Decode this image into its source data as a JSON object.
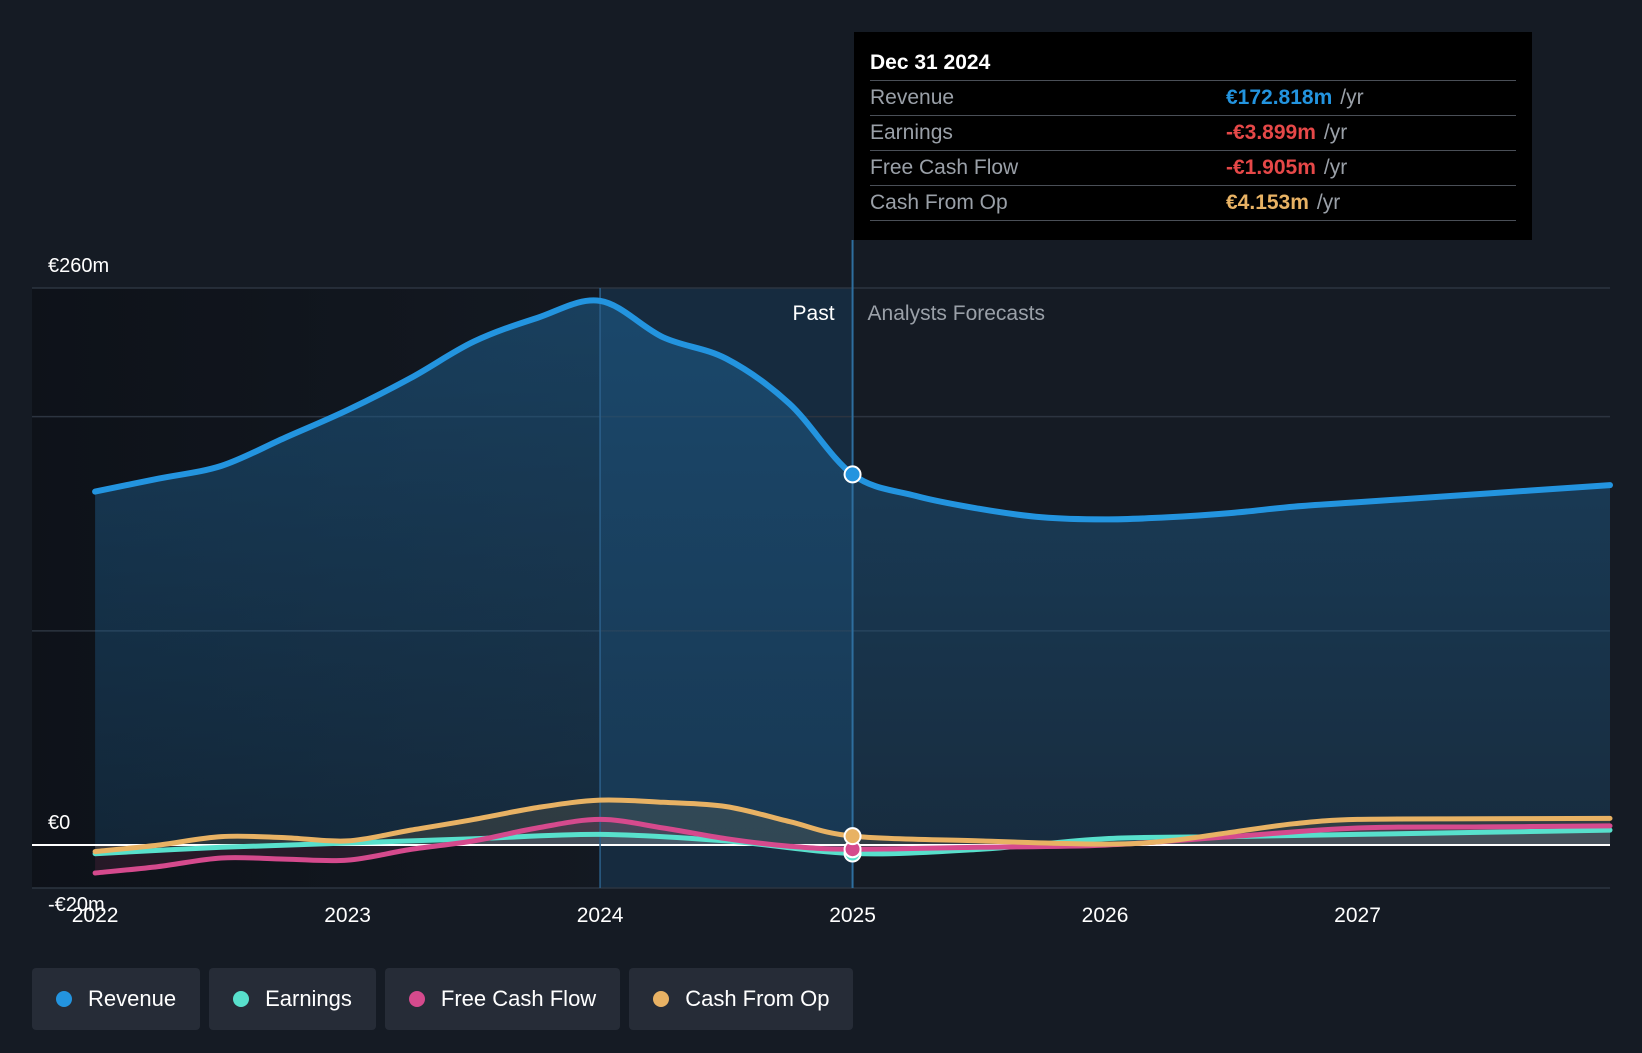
{
  "chart_data": {
    "type": "area",
    "title": "",
    "y_unit": "€m",
    "ylim": [
      -20,
      260
    ],
    "y_tick_labels": [
      {
        "value": 260,
        "label": "€260m"
      },
      {
        "value": 0,
        "label": "€0"
      },
      {
        "value": -20,
        "label": "-€20m"
      }
    ],
    "xlim": [
      2021.75,
      2028.0
    ],
    "x_ticks": [
      2022,
      2023,
      2024,
      2025,
      2026,
      2027
    ],
    "x_tick_labels": [
      "2022",
      "2023",
      "2024",
      "2025",
      "2026",
      "2027"
    ],
    "divider_x": 2025.0,
    "highlight_x": 2024.0,
    "past_label": "Past",
    "forecast_label": "Analysts Forecasts",
    "series": [
      {
        "name": "Revenue",
        "color": "#2394df",
        "points": [
          [
            2022.0,
            165
          ],
          [
            2022.25,
            171
          ],
          [
            2022.5,
            177
          ],
          [
            2022.75,
            190
          ],
          [
            2023.0,
            203
          ],
          [
            2023.25,
            218
          ],
          [
            2023.5,
            235
          ],
          [
            2023.75,
            246
          ],
          [
            2024.0,
            254
          ],
          [
            2024.25,
            237
          ],
          [
            2024.5,
            227
          ],
          [
            2024.75,
            206
          ],
          [
            2025.0,
            173
          ],
          [
            2025.25,
            163
          ],
          [
            2025.5,
            157
          ],
          [
            2025.75,
            153
          ],
          [
            2026.0,
            152
          ],
          [
            2026.25,
            153
          ],
          [
            2026.5,
            155
          ],
          [
            2026.75,
            158
          ],
          [
            2027.0,
            160
          ],
          [
            2027.5,
            164
          ],
          [
            2028.0,
            168
          ]
        ]
      },
      {
        "name": "Earnings",
        "color": "#58e0cc",
        "points": [
          [
            2022.0,
            -4
          ],
          [
            2022.5,
            -1
          ],
          [
            2023.0,
            1
          ],
          [
            2023.5,
            3
          ],
          [
            2024.0,
            5
          ],
          [
            2024.5,
            2
          ],
          [
            2025.0,
            -3.9
          ],
          [
            2025.5,
            -2
          ],
          [
            2026.0,
            3
          ],
          [
            2026.5,
            4
          ],
          [
            2027.0,
            5
          ],
          [
            2027.5,
            6
          ],
          [
            2028.0,
            7
          ]
        ]
      },
      {
        "name": "Free Cash Flow",
        "color": "#d54a8d",
        "points": [
          [
            2022.0,
            -13
          ],
          [
            2022.25,
            -10
          ],
          [
            2022.5,
            -6
          ],
          [
            2022.75,
            -6.5
          ],
          [
            2023.0,
            -7
          ],
          [
            2023.25,
            -2
          ],
          [
            2023.5,
            2
          ],
          [
            2023.75,
            8
          ],
          [
            2024.0,
            12
          ],
          [
            2024.25,
            8
          ],
          [
            2024.5,
            3
          ],
          [
            2024.75,
            -0.5
          ],
          [
            2025.0,
            -1.9
          ],
          [
            2025.5,
            -1
          ],
          [
            2026.0,
            0
          ],
          [
            2026.5,
            4
          ],
          [
            2027.0,
            8
          ],
          [
            2027.5,
            8.5
          ],
          [
            2028.0,
            9
          ]
        ]
      },
      {
        "name": "Cash From Op",
        "color": "#e8b264",
        "points": [
          [
            2022.0,
            -3
          ],
          [
            2022.25,
            0
          ],
          [
            2022.5,
            4
          ],
          [
            2022.75,
            3.5
          ],
          [
            2023.0,
            2
          ],
          [
            2023.25,
            7
          ],
          [
            2023.5,
            12
          ],
          [
            2023.75,
            17.5
          ],
          [
            2024.0,
            21
          ],
          [
            2024.25,
            20
          ],
          [
            2024.5,
            18
          ],
          [
            2024.75,
            11
          ],
          [
            2025.0,
            4.2
          ],
          [
            2025.5,
            2
          ],
          [
            2026.0,
            0.5
          ],
          [
            2026.25,
            2
          ],
          [
            2026.5,
            6
          ],
          [
            2026.75,
            10
          ],
          [
            2027.0,
            12
          ],
          [
            2027.5,
            12.3
          ],
          [
            2028.0,
            12.5
          ]
        ]
      }
    ],
    "tooltip": {
      "date": "Dec 31 2024",
      "rows": [
        {
          "label": "Revenue",
          "value": "€172.818m",
          "unit": "/yr",
          "color": "#2394df"
        },
        {
          "label": "Earnings",
          "value": "-€3.899m",
          "unit": "/yr",
          "color": "#e64848"
        },
        {
          "label": "Free Cash Flow",
          "value": "-€1.905m",
          "unit": "/yr",
          "color": "#e64848"
        },
        {
          "label": "Cash From Op",
          "value": "€4.153m",
          "unit": "/yr",
          "color": "#e8b264"
        }
      ]
    }
  },
  "legend": [
    {
      "label": "Revenue",
      "color": "#2394df"
    },
    {
      "label": "Earnings",
      "color": "#58e0cc"
    },
    {
      "label": "Free Cash Flow",
      "color": "#d54a8d"
    },
    {
      "label": "Cash From Op",
      "color": "#e8b264"
    }
  ]
}
